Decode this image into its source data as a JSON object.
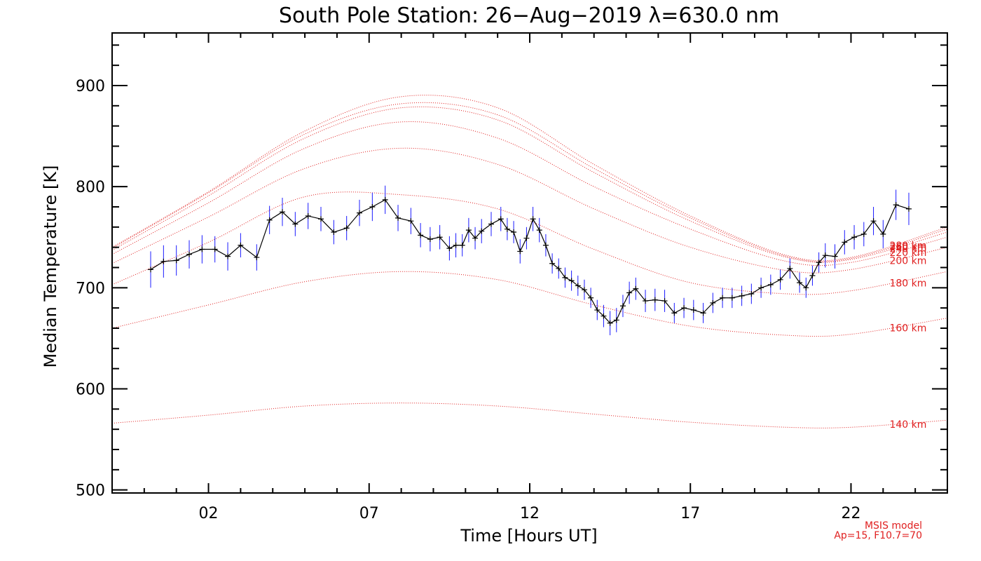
{
  "chart_data": {
    "type": "line",
    "title": "South Pole Station: 26−Aug−2019 λ=630.0 nm",
    "xlabel": "Time [Hours UT]",
    "ylabel": "Median Temperature [K]",
    "xlim": [
      -1,
      25
    ],
    "ylim": [
      497,
      952
    ],
    "x_ticks": [
      2,
      7,
      12,
      17,
      22
    ],
    "x_tick_labels": [
      "02",
      "07",
      "12",
      "17",
      "22"
    ],
    "y_ticks": [
      500,
      600,
      700,
      800,
      900
    ],
    "y_tick_labels": [
      "500",
      "600",
      "700",
      "800",
      "900"
    ],
    "grid": false,
    "colors": {
      "data_line": "#000000",
      "error_bars": "#1a1aff",
      "model": "#e02020",
      "frame": "#000000"
    },
    "series": [
      {
        "name": "",
        "x": [
          0.2,
          0.6,
          1.0,
          1.4,
          1.8,
          2.2,
          2.6,
          3.0,
          3.5,
          3.9,
          4.3,
          4.7,
          5.1,
          5.5,
          5.9,
          6.3,
          6.7,
          7.1,
          7.5,
          7.9,
          8.3,
          8.6,
          8.9,
          9.2,
          9.5,
          9.7,
          9.9,
          10.1,
          10.3,
          10.5,
          10.8,
          11.1,
          11.3,
          11.5,
          11.7,
          11.9,
          12.1,
          12.3,
          12.5,
          12.7,
          12.9,
          13.1,
          13.3,
          13.5,
          13.7,
          13.9,
          14.1,
          14.3,
          14.5,
          14.7,
          14.9,
          15.1,
          15.3,
          15.6,
          15.9,
          16.2,
          16.5,
          16.8,
          17.1,
          17.4,
          17.7,
          18.0,
          18.3,
          18.6,
          18.9,
          19.2,
          19.5,
          19.8,
          20.1,
          20.4,
          20.6,
          20.8,
          21.0,
          21.2,
          21.5,
          21.8,
          22.1,
          22.4,
          22.7,
          23.0,
          23.4,
          23.8
        ],
        "y": [
          718,
          726,
          727,
          733,
          738,
          738,
          731,
          742,
          730,
          767,
          775,
          763,
          771,
          768,
          755,
          759,
          774,
          780,
          787,
          769,
          766,
          752,
          748,
          750,
          739,
          742,
          742,
          757,
          749,
          756,
          763,
          768,
          758,
          755,
          736,
          749,
          768,
          757,
          742,
          724,
          719,
          710,
          707,
          702,
          698,
          690,
          678,
          672,
          665,
          668,
          682,
          695,
          699,
          687,
          688,
          687,
          675,
          680,
          678,
          675,
          685,
          690,
          690,
          692,
          694,
          700,
          703,
          708,
          719,
          705,
          700,
          712,
          725,
          732,
          731,
          745,
          750,
          753,
          766,
          753,
          782,
          778
        ],
        "err": [
          18,
          16,
          15,
          14,
          14,
          13,
          14,
          12,
          13,
          14,
          14,
          12,
          13,
          12,
          12,
          12,
          13,
          14,
          14,
          13,
          13,
          12,
          12,
          12,
          12,
          12,
          11,
          12,
          11,
          12,
          12,
          12,
          11,
          11,
          12,
          11,
          12,
          12,
          11,
          10,
          10,
          10,
          10,
          10,
          10,
          10,
          10,
          11,
          12,
          12,
          11,
          11,
          11,
          11,
          11,
          11,
          10,
          10,
          10,
          10,
          10,
          10,
          10,
          10,
          10,
          10,
          10,
          10,
          10,
          10,
          10,
          10,
          10,
          12,
          12,
          12,
          12,
          12,
          14,
          14,
          15,
          16
        ]
      }
    ],
    "model_curves": [
      {
        "name": "140 km",
        "label": "140 km",
        "x": [
          -1,
          2,
          5,
          8,
          11,
          14,
          17,
          20,
          22,
          25
        ],
        "y": [
          566,
          574,
          583,
          586,
          583,
          575,
          567,
          562,
          562,
          569
        ]
      },
      {
        "name": "160 km",
        "label": "160 km",
        "x": [
          -1,
          2,
          5,
          8,
          11,
          14,
          17,
          20,
          22,
          25
        ],
        "y": [
          660,
          683,
          706,
          716,
          708,
          683,
          662,
          653,
          654,
          670
        ]
      },
      {
        "name": "180 km",
        "label": "180 km",
        "x": [
          -1,
          2,
          5,
          8,
          11,
          14,
          17,
          20,
          22,
          25
        ],
        "y": [
          703,
          745,
          790,
          792,
          778,
          738,
          705,
          694,
          697,
          716
        ]
      },
      {
        "name": "200 km",
        "label": "200 km",
        "x": [
          -1,
          2,
          5,
          8,
          11,
          14,
          17,
          20,
          22,
          25
        ],
        "y": [
          724,
          770,
          818,
          838,
          822,
          778,
          740,
          717,
          718,
          740
        ]
      },
      {
        "name": "220 km",
        "label": "220 km",
        "x": [
          -1,
          2,
          5,
          8,
          11,
          14,
          17,
          20,
          22,
          25
        ],
        "y": [
          733,
          784,
          838,
          864,
          848,
          800,
          758,
          726,
          725,
          750
        ]
      },
      {
        "name": "240 km",
        "label": "240 km",
        "x": [
          -1,
          2,
          5,
          8,
          11,
          14,
          17,
          20,
          22,
          25
        ],
        "y": [
          737,
          791,
          848,
          878,
          866,
          814,
          766,
          730,
          728,
          755
        ]
      },
      {
        "name": "260 km",
        "label": "260 km",
        "x": [
          -1,
          2,
          5,
          8,
          11,
          14,
          17,
          20,
          22,
          25
        ],
        "y": [
          739,
          794,
          852,
          882,
          871,
          818,
          769,
          731,
          729,
          758
        ]
      },
      {
        "name": "280 km",
        "label": "280 km",
        "x": [
          -1,
          2,
          5,
          8,
          11,
          14,
          17,
          20,
          22,
          25
        ],
        "y": [
          740,
          795,
          855,
          889,
          878,
          822,
          771,
          732,
          730,
          760
        ]
      }
    ],
    "model_label_positions_note": "",
    "annotations": [
      "MSIS model",
      "Ap=15, F10.7=70"
    ]
  }
}
